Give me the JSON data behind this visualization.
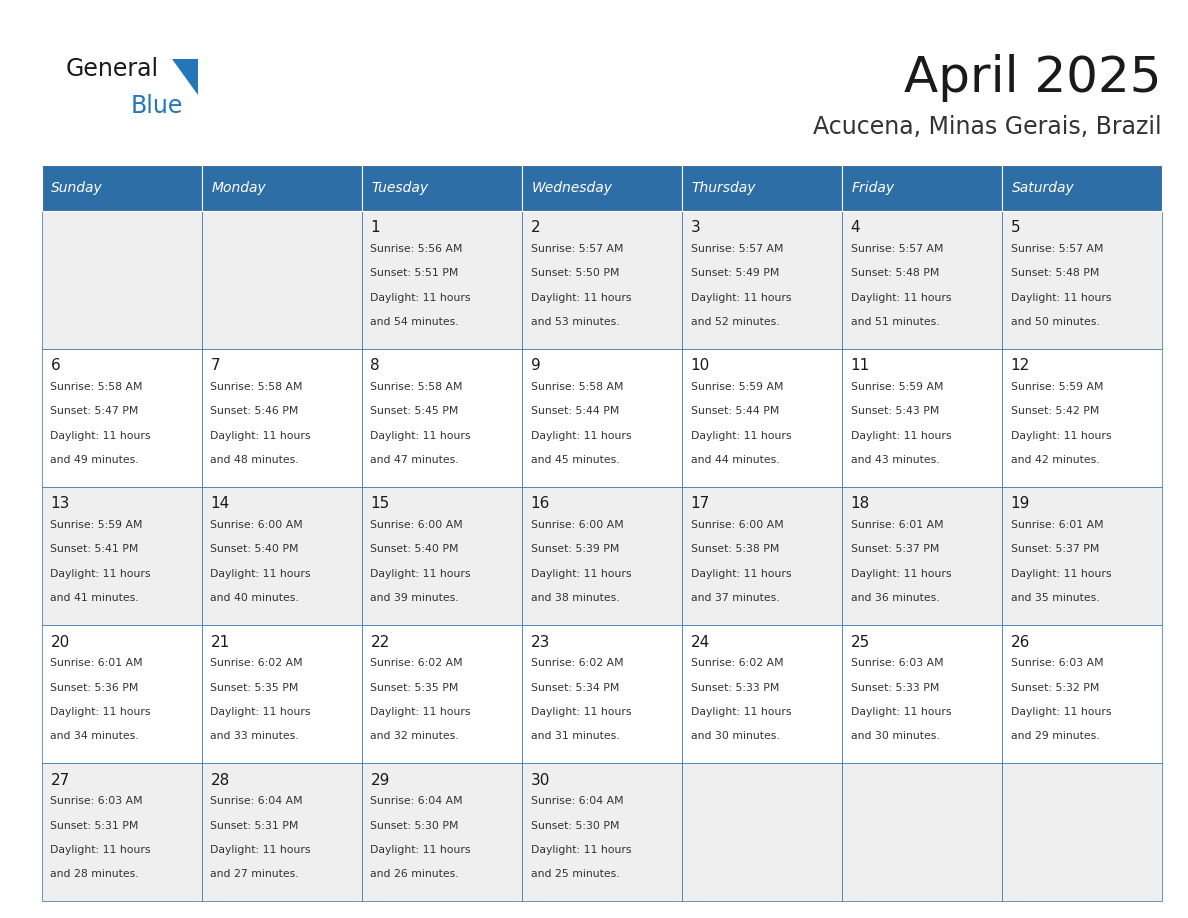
{
  "title": "April 2025",
  "subtitle": "Acucena, Minas Gerais, Brazil",
  "header_bg_color": "#2E6EA6",
  "header_text_color": "#FFFFFF",
  "cell_bg_color_odd": "#EFEFEF",
  "cell_bg_color_even": "#FFFFFF",
  "grid_line_color": "#2E6EA6",
  "day_names": [
    "Sunday",
    "Monday",
    "Tuesday",
    "Wednesday",
    "Thursday",
    "Friday",
    "Saturday"
  ],
  "title_color": "#1a1a1a",
  "subtitle_color": "#333333",
  "day_number_color": "#1a1a1a",
  "info_text_color": "#333333",
  "calendar": [
    [
      {
        "day": "",
        "sunrise": "",
        "sunset": "",
        "daylight_h": "",
        "daylight_m": ""
      },
      {
        "day": "",
        "sunrise": "",
        "sunset": "",
        "daylight_h": "",
        "daylight_m": ""
      },
      {
        "day": "1",
        "sunrise": "5:56 AM",
        "sunset": "5:51 PM",
        "daylight_h": "11 hours",
        "daylight_m": "and 54 minutes."
      },
      {
        "day": "2",
        "sunrise": "5:57 AM",
        "sunset": "5:50 PM",
        "daylight_h": "11 hours",
        "daylight_m": "and 53 minutes."
      },
      {
        "day": "3",
        "sunrise": "5:57 AM",
        "sunset": "5:49 PM",
        "daylight_h": "11 hours",
        "daylight_m": "and 52 minutes."
      },
      {
        "day": "4",
        "sunrise": "5:57 AM",
        "sunset": "5:48 PM",
        "daylight_h": "11 hours",
        "daylight_m": "and 51 minutes."
      },
      {
        "day": "5",
        "sunrise": "5:57 AM",
        "sunset": "5:48 PM",
        "daylight_h": "11 hours",
        "daylight_m": "and 50 minutes."
      }
    ],
    [
      {
        "day": "6",
        "sunrise": "5:58 AM",
        "sunset": "5:47 PM",
        "daylight_h": "11 hours",
        "daylight_m": "and 49 minutes."
      },
      {
        "day": "7",
        "sunrise": "5:58 AM",
        "sunset": "5:46 PM",
        "daylight_h": "11 hours",
        "daylight_m": "and 48 minutes."
      },
      {
        "day": "8",
        "sunrise": "5:58 AM",
        "sunset": "5:45 PM",
        "daylight_h": "11 hours",
        "daylight_m": "and 47 minutes."
      },
      {
        "day": "9",
        "sunrise": "5:58 AM",
        "sunset": "5:44 PM",
        "daylight_h": "11 hours",
        "daylight_m": "and 45 minutes."
      },
      {
        "day": "10",
        "sunrise": "5:59 AM",
        "sunset": "5:44 PM",
        "daylight_h": "11 hours",
        "daylight_m": "and 44 minutes."
      },
      {
        "day": "11",
        "sunrise": "5:59 AM",
        "sunset": "5:43 PM",
        "daylight_h": "11 hours",
        "daylight_m": "and 43 minutes."
      },
      {
        "day": "12",
        "sunrise": "5:59 AM",
        "sunset": "5:42 PM",
        "daylight_h": "11 hours",
        "daylight_m": "and 42 minutes."
      }
    ],
    [
      {
        "day": "13",
        "sunrise": "5:59 AM",
        "sunset": "5:41 PM",
        "daylight_h": "11 hours",
        "daylight_m": "and 41 minutes."
      },
      {
        "day": "14",
        "sunrise": "6:00 AM",
        "sunset": "5:40 PM",
        "daylight_h": "11 hours",
        "daylight_m": "and 40 minutes."
      },
      {
        "day": "15",
        "sunrise": "6:00 AM",
        "sunset": "5:40 PM",
        "daylight_h": "11 hours",
        "daylight_m": "and 39 minutes."
      },
      {
        "day": "16",
        "sunrise": "6:00 AM",
        "sunset": "5:39 PM",
        "daylight_h": "11 hours",
        "daylight_m": "and 38 minutes."
      },
      {
        "day": "17",
        "sunrise": "6:00 AM",
        "sunset": "5:38 PM",
        "daylight_h": "11 hours",
        "daylight_m": "and 37 minutes."
      },
      {
        "day": "18",
        "sunrise": "6:01 AM",
        "sunset": "5:37 PM",
        "daylight_h": "11 hours",
        "daylight_m": "and 36 minutes."
      },
      {
        "day": "19",
        "sunrise": "6:01 AM",
        "sunset": "5:37 PM",
        "daylight_h": "11 hours",
        "daylight_m": "and 35 minutes."
      }
    ],
    [
      {
        "day": "20",
        "sunrise": "6:01 AM",
        "sunset": "5:36 PM",
        "daylight_h": "11 hours",
        "daylight_m": "and 34 minutes."
      },
      {
        "day": "21",
        "sunrise": "6:02 AM",
        "sunset": "5:35 PM",
        "daylight_h": "11 hours",
        "daylight_m": "and 33 minutes."
      },
      {
        "day": "22",
        "sunrise": "6:02 AM",
        "sunset": "5:35 PM",
        "daylight_h": "11 hours",
        "daylight_m": "and 32 minutes."
      },
      {
        "day": "23",
        "sunrise": "6:02 AM",
        "sunset": "5:34 PM",
        "daylight_h": "11 hours",
        "daylight_m": "and 31 minutes."
      },
      {
        "day": "24",
        "sunrise": "6:02 AM",
        "sunset": "5:33 PM",
        "daylight_h": "11 hours",
        "daylight_m": "and 30 minutes."
      },
      {
        "day": "25",
        "sunrise": "6:03 AM",
        "sunset": "5:33 PM",
        "daylight_h": "11 hours",
        "daylight_m": "and 30 minutes."
      },
      {
        "day": "26",
        "sunrise": "6:03 AM",
        "sunset": "5:32 PM",
        "daylight_h": "11 hours",
        "daylight_m": "and 29 minutes."
      }
    ],
    [
      {
        "day": "27",
        "sunrise": "6:03 AM",
        "sunset": "5:31 PM",
        "daylight_h": "11 hours",
        "daylight_m": "and 28 minutes."
      },
      {
        "day": "28",
        "sunrise": "6:04 AM",
        "sunset": "5:31 PM",
        "daylight_h": "11 hours",
        "daylight_m": "and 27 minutes."
      },
      {
        "day": "29",
        "sunrise": "6:04 AM",
        "sunset": "5:30 PM",
        "daylight_h": "11 hours",
        "daylight_m": "and 26 minutes."
      },
      {
        "day": "30",
        "sunrise": "6:04 AM",
        "sunset": "5:30 PM",
        "daylight_h": "11 hours",
        "daylight_m": "and 25 minutes."
      },
      {
        "day": "",
        "sunrise": "",
        "sunset": "",
        "daylight_h": "",
        "daylight_m": ""
      },
      {
        "day": "",
        "sunrise": "",
        "sunset": "",
        "daylight_h": "",
        "daylight_m": ""
      },
      {
        "day": "",
        "sunrise": "",
        "sunset": "",
        "daylight_h": "",
        "daylight_m": ""
      }
    ]
  ],
  "logo_text1": "General",
  "logo_text2": "Blue",
  "logo_color1": "#1a1a1a",
  "logo_color2": "#2277BB",
  "logo_triangle_color": "#2277BB"
}
